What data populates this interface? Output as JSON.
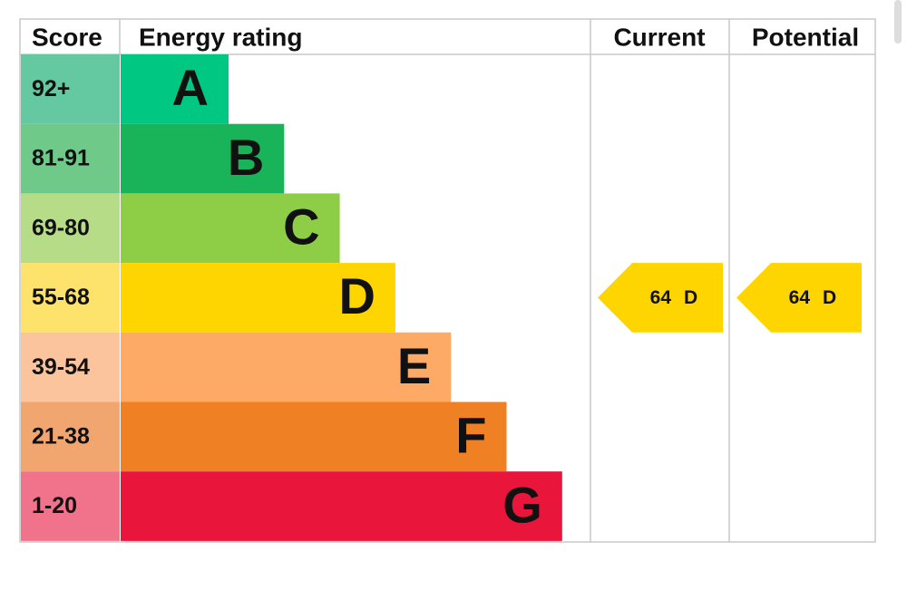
{
  "headers": [
    "Score",
    "Energy rating",
    "Current",
    "Potential"
  ],
  "rows": [
    {
      "score": "92+",
      "rating": "A"
    },
    {
      "score": "81-91",
      "rating": "B"
    },
    {
      "score": "69-80",
      "rating": "C"
    },
    {
      "score": "55-68",
      "rating": "D"
    },
    {
      "score": "39-54",
      "rating": "E"
    },
    {
      "score": "21-38",
      "rating": "F"
    },
    {
      "score": "1-20",
      "rating": "G"
    }
  ],
  "current": {
    "value": 64,
    "rating": "D"
  },
  "potential": {
    "value": 64,
    "rating": "D"
  }
}
